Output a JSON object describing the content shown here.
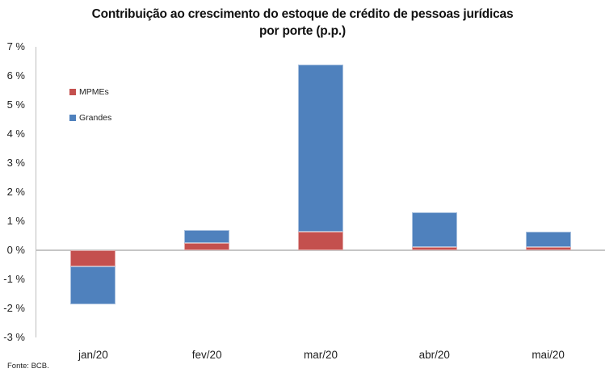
{
  "header": {
    "title_line1": "Contribuição ao crescimento do estoque de crédito de pessoas jurídicas",
    "title_line2": "por porte (p.p.)"
  },
  "footer": {
    "source": "Fonte: BCB."
  },
  "chart_data": {
    "type": "bar",
    "stacked": true,
    "title": "Contribuição ao crescimento do estoque de crédito de pessoas jurídicas por porte (p.p.)",
    "categories": [
      "jan/20",
      "fev/20",
      "mar/20",
      "abr/20",
      "mai/20"
    ],
    "series": [
      {
        "name": "MPMEs",
        "color": "#C4504E",
        "values": [
          -0.55,
          0.25,
          0.65,
          0.1,
          0.1
        ]
      },
      {
        "name": "Grandes",
        "color": "#4F81BD",
        "values": [
          -1.3,
          0.45,
          5.75,
          1.2,
          0.55
        ]
      }
    ],
    "totals": [
      -1.85,
      0.7,
      6.4,
      1.3,
      0.65
    ],
    "ylim": [
      -3,
      7
    ],
    "ytick_step": 1,
    "ytick_labels": [
      "7 %",
      "6 %",
      "5 %",
      "4 %",
      "3 %",
      "2 %",
      "1 %",
      "0 %",
      "-1 %",
      "-2 %",
      "-3 %"
    ],
    "xlabel": "",
    "ylabel": "",
    "grid": false,
    "legend_position": "inside-top-left",
    "background": "#ffffff",
    "axis_color": "#bfbfbf",
    "zeroline_color": "#c6c6c6"
  }
}
